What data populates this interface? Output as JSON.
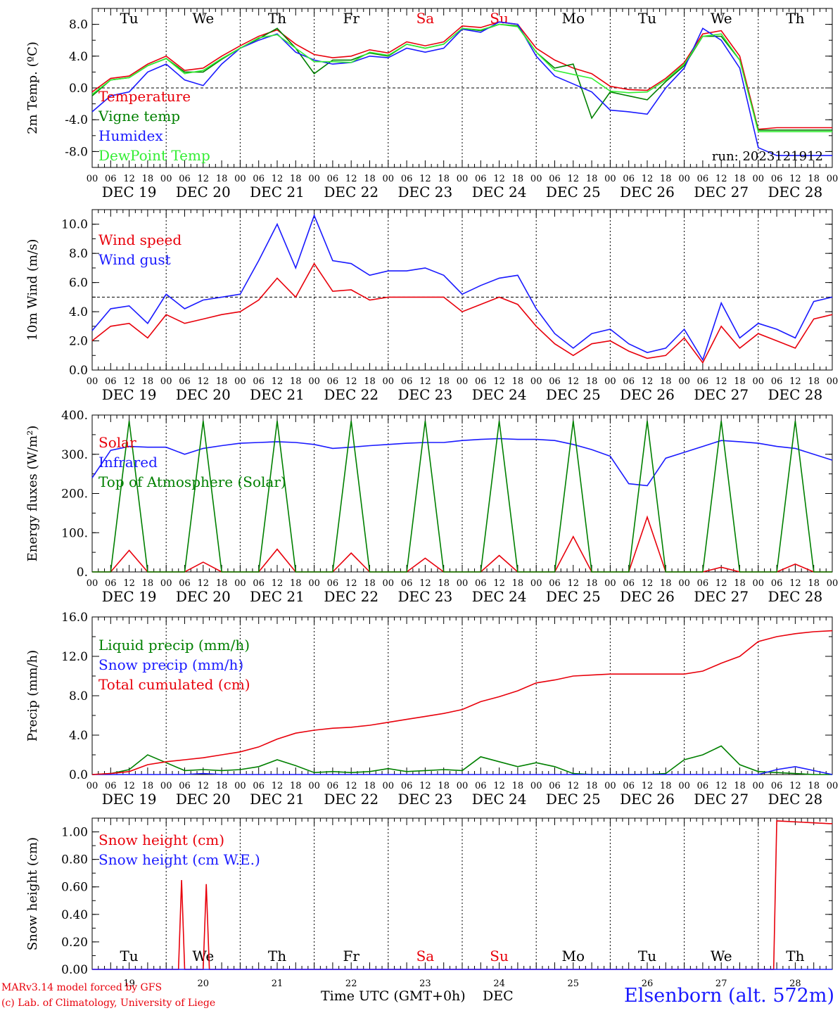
{
  "colors": {
    "red": "#e8000b",
    "green": "#008000",
    "blue": "#1a1aff",
    "lime": "#33ee33",
    "black": "#000000"
  },
  "x_axis": {
    "hour_ticks": [
      "00",
      "06",
      "12",
      "18"
    ],
    "final_tick": "00",
    "dates": [
      "DEC 19",
      "DEC 20",
      "DEC 21",
      "DEC 22",
      "DEC 23",
      "DEC 24",
      "DEC 25",
      "DEC 26",
      "DEC 27",
      "DEC 28"
    ],
    "day_numbers": [
      "19",
      "20",
      "21",
      "22",
      "23",
      "24",
      "25",
      "26",
      "27",
      "28"
    ],
    "weekdays": [
      {
        "label": "Tu",
        "color": "#000000"
      },
      {
        "label": "We",
        "color": "#000000"
      },
      {
        "label": "Th",
        "color": "#000000"
      },
      {
        "label": "Fr",
        "color": "#000000"
      },
      {
        "label": "Sa",
        "color": "#e8000b"
      },
      {
        "label": "Su",
        "color": "#e8000b"
      },
      {
        "label": "Mo",
        "color": "#000000"
      },
      {
        "label": "Tu",
        "color": "#000000"
      },
      {
        "label": "We",
        "color": "#000000"
      },
      {
        "label": "Th",
        "color": "#000000"
      }
    ]
  },
  "footer": {
    "model": "MARv3.14 model forced by GFS",
    "credit": "(c) Lab. of Climatology, University of Liege",
    "axis_title": "Time UTC (GMT+0h)",
    "month": "DEC",
    "station": "Elsenborn (alt. 572m)"
  },
  "chart_data": [
    {
      "type": "line",
      "ylabel": "2m Temp. (ºC)",
      "ylim": [
        -10,
        10
      ],
      "yticks": [
        8.0,
        4.0,
        0.0,
        -4.0,
        -8.0
      ],
      "ytick_labels": [
        "8.0",
        "4.0",
        "0.0",
        "-4.0",
        "-8.0"
      ],
      "ref_line": 0,
      "annotation": "run: 2023121912",
      "x_unit": "hours since DEC 19 00 UTC",
      "x": [
        0,
        6,
        12,
        18,
        24,
        30,
        36,
        42,
        48,
        54,
        60,
        66,
        72,
        78,
        84,
        90,
        96,
        102,
        108,
        114,
        120,
        126,
        132,
        138,
        144,
        150,
        156,
        162,
        168,
        174,
        180,
        186,
        192,
        198,
        204,
        210,
        216,
        222,
        228,
        234,
        240
      ],
      "series": [
        {
          "name": "Temperature",
          "color": "#e8000b",
          "values": [
            -0.5,
            1.2,
            1.5,
            3.0,
            4.0,
            2.2,
            2.5,
            4.0,
            5.3,
            6.5,
            7.3,
            5.5,
            4.2,
            3.8,
            4.0,
            4.8,
            4.4,
            5.8,
            5.3,
            5.8,
            7.8,
            7.6,
            8.3,
            8.0,
            5.0,
            3.5,
            2.5,
            1.8,
            0.2,
            -0.2,
            -0.3,
            1.2,
            3.2,
            6.8,
            7.2,
            4.0,
            -5.2,
            -5.0,
            -5.0,
            -5.0,
            -5.0
          ]
        },
        {
          "name": "Vigne temp",
          "color": "#008000",
          "values": [
            -1.0,
            1.0,
            1.3,
            2.8,
            3.7,
            2.0,
            2.0,
            3.6,
            5.0,
            6.2,
            7.5,
            5.0,
            1.8,
            3.5,
            3.5,
            4.4,
            4.0,
            5.5,
            5.0,
            5.5,
            7.5,
            7.2,
            8.0,
            7.8,
            4.5,
            2.5,
            3.0,
            -3.8,
            -0.5,
            -1.0,
            -1.5,
            0.8,
            2.8,
            6.5,
            6.5,
            3.5,
            -5.3,
            -5.3,
            -5.3,
            -5.3,
            -5.3
          ]
        },
        {
          "name": "Humidex",
          "color": "#1a1aff",
          "values": [
            -3.0,
            -1.0,
            -0.5,
            2.0,
            3.0,
            1.0,
            0.3,
            3.0,
            5.0,
            6.0,
            6.8,
            4.5,
            3.5,
            3.0,
            3.2,
            4.0,
            3.8,
            5.0,
            4.5,
            5.0,
            7.4,
            7.0,
            8.3,
            8.0,
            4.0,
            1.5,
            0.5,
            -0.5,
            -2.8,
            -3.0,
            -3.3,
            0.0,
            2.5,
            7.5,
            6.0,
            2.5,
            -7.5,
            -8.5,
            -8.5,
            -8.5,
            -8.5
          ]
        },
        {
          "name": "DewPoint Temp",
          "color": "#33ee33",
          "values": [
            -0.8,
            1.0,
            1.3,
            2.8,
            3.7,
            1.8,
            2.2,
            3.7,
            5.0,
            6.3,
            6.7,
            5.0,
            3.3,
            3.3,
            3.2,
            4.5,
            4.1,
            5.5,
            5.0,
            5.5,
            7.5,
            7.3,
            8.0,
            7.7,
            4.5,
            2.2,
            1.7,
            1.2,
            -0.4,
            -0.6,
            -0.5,
            1.0,
            3.0,
            6.5,
            6.8,
            3.5,
            -5.5,
            -5.5,
            -5.5,
            -5.5,
            -5.5
          ]
        }
      ]
    },
    {
      "type": "line",
      "ylabel": "10m Wind (m/s)",
      "ylim": [
        0,
        11
      ],
      "yticks": [
        0,
        2,
        4,
        6,
        8,
        10
      ],
      "ytick_labels": [
        "0.0",
        "2.0",
        "4.0",
        "6.0",
        "8.0",
        "10.0"
      ],
      "ref_line": 5,
      "x_unit": "hours since DEC 19 00 UTC",
      "x": [
        0,
        6,
        12,
        18,
        24,
        30,
        36,
        42,
        48,
        54,
        60,
        66,
        72,
        78,
        84,
        90,
        96,
        102,
        108,
        114,
        120,
        126,
        132,
        138,
        144,
        150,
        156,
        162,
        168,
        174,
        180,
        186,
        192,
        198,
        204,
        210,
        216,
        222,
        228,
        234,
        240
      ],
      "series": [
        {
          "name": "Wind speed",
          "color": "#e8000b",
          "values": [
            2.0,
            3.0,
            3.2,
            2.2,
            3.8,
            3.2,
            3.5,
            3.8,
            4.0,
            4.8,
            6.3,
            5.0,
            7.3,
            5.4,
            5.5,
            4.8,
            5.0,
            5.0,
            5.0,
            5.0,
            4.0,
            4.5,
            5.0,
            4.5,
            3.0,
            1.8,
            1.0,
            1.8,
            2.0,
            1.3,
            0.8,
            1.0,
            2.2,
            0.5,
            3.0,
            1.5,
            2.5,
            2.0,
            1.5,
            3.5,
            3.8
          ]
        },
        {
          "name": "Wind gust",
          "color": "#1a1aff",
          "values": [
            2.7,
            4.2,
            4.4,
            3.2,
            5.2,
            4.2,
            4.8,
            5.0,
            5.2,
            7.5,
            10.0,
            7.0,
            10.6,
            7.5,
            7.3,
            6.5,
            6.8,
            6.8,
            7.0,
            6.5,
            5.2,
            5.8,
            6.3,
            6.5,
            4.2,
            2.5,
            1.5,
            2.5,
            2.8,
            1.8,
            1.2,
            1.5,
            2.8,
            0.7,
            4.6,
            2.2,
            3.2,
            2.8,
            2.2,
            4.7,
            5.0
          ]
        }
      ]
    },
    {
      "type": "line",
      "ylabel": "Energy fluxes (W/m²)",
      "ylim": [
        0,
        400
      ],
      "yticks": [
        0,
        100,
        200,
        300,
        400
      ],
      "ytick_labels": [
        "0.",
        "100.",
        "200.",
        "300.",
        "400."
      ],
      "x_unit": "hours since DEC 19 00 UTC",
      "x": [
        0,
        6,
        12,
        18,
        24,
        30,
        36,
        42,
        48,
        54,
        60,
        66,
        72,
        78,
        84,
        90,
        96,
        102,
        108,
        114,
        120,
        126,
        132,
        138,
        144,
        150,
        156,
        162,
        168,
        174,
        180,
        186,
        192,
        198,
        204,
        210,
        216,
        222,
        228,
        234,
        240
      ],
      "series": [
        {
          "name": "Solar",
          "color": "#e8000b",
          "values": [
            0,
            0,
            55,
            0,
            0,
            0,
            25,
            0,
            0,
            0,
            58,
            0,
            0,
            0,
            48,
            0,
            0,
            0,
            35,
            0,
            0,
            0,
            42,
            0,
            0,
            0,
            90,
            0,
            0,
            0,
            140,
            0,
            0,
            0,
            12,
            0,
            0,
            0,
            20,
            0,
            0
          ]
        },
        {
          "name": "Infrared",
          "color": "#1a1aff",
          "values": [
            240,
            310,
            320,
            318,
            318,
            300,
            315,
            322,
            328,
            330,
            332,
            330,
            325,
            315,
            318,
            322,
            325,
            328,
            330,
            330,
            335,
            338,
            340,
            338,
            338,
            335,
            325,
            312,
            295,
            225,
            220,
            290,
            305,
            320,
            335,
            332,
            328,
            320,
            315,
            300,
            285
          ]
        },
        {
          "name": "Top of Atmosphere (Solar)",
          "color": "#008000",
          "values": [
            0,
            0,
            385,
            0,
            0,
            0,
            385,
            0,
            0,
            0,
            385,
            0,
            0,
            0,
            385,
            0,
            0,
            0,
            385,
            0,
            0,
            0,
            385,
            0,
            0,
            0,
            385,
            0,
            0,
            0,
            385,
            0,
            0,
            0,
            385,
            0,
            0,
            0,
            385,
            0,
            0
          ]
        }
      ]
    },
    {
      "type": "line",
      "ylabel": "Precip (mm/h)",
      "ylim": [
        0,
        16
      ],
      "yticks": [
        0,
        4,
        8,
        12,
        16
      ],
      "ytick_labels": [
        "0.0",
        "4.0",
        "8.0",
        "12.0",
        "16.0"
      ],
      "x_unit": "hours since DEC 19 00 UTC",
      "x": [
        0,
        6,
        12,
        18,
        24,
        30,
        36,
        42,
        48,
        54,
        60,
        66,
        72,
        78,
        84,
        90,
        96,
        102,
        108,
        114,
        120,
        126,
        132,
        138,
        144,
        150,
        156,
        162,
        168,
        174,
        180,
        186,
        192,
        198,
        204,
        210,
        216,
        222,
        228,
        234,
        240
      ],
      "series": [
        {
          "name": "Liquid precip (mm/h)",
          "color": "#008000",
          "values": [
            0,
            0.1,
            0.5,
            2.0,
            1.2,
            0.4,
            0.5,
            0.4,
            0.5,
            0.8,
            1.5,
            0.9,
            0.2,
            0.3,
            0.2,
            0.3,
            0.6,
            0.3,
            0.4,
            0.5,
            0.4,
            1.8,
            1.3,
            0.8,
            1.2,
            0.8,
            0.1,
            0.0,
            0.0,
            0.0,
            0.0,
            0.1,
            1.5,
            2.0,
            2.9,
            1.0,
            0.3,
            0.2,
            0.1,
            0.0,
            0.0
          ]
        },
        {
          "name": "Snow precip (mm/h)",
          "color": "#1a1aff",
          "values": [
            0,
            0,
            0,
            0,
            0,
            0,
            0.1,
            0,
            0,
            0,
            0,
            0,
            0,
            0,
            0,
            0,
            0,
            0,
            0,
            0,
            0,
            0,
            0,
            0,
            0,
            0,
            0,
            0,
            0,
            0,
            0,
            0,
            0,
            0,
            0,
            0,
            0,
            0.5,
            0.8,
            0.4,
            0
          ]
        },
        {
          "name": "Total cumulated (cm)",
          "color": "#e8000b",
          "values": [
            0,
            0.1,
            0.3,
            1.0,
            1.3,
            1.5,
            1.7,
            2.0,
            2.3,
            2.8,
            3.6,
            4.2,
            4.5,
            4.7,
            4.8,
            5.0,
            5.3,
            5.6,
            5.9,
            6.2,
            6.6,
            7.4,
            7.9,
            8.5,
            9.3,
            9.6,
            10.0,
            10.1,
            10.2,
            10.2,
            10.2,
            10.2,
            10.2,
            10.5,
            11.3,
            12.0,
            13.5,
            14.0,
            14.3,
            14.5,
            14.6
          ]
        }
      ]
    },
    {
      "type": "line",
      "ylabel": "Snow height (cm)",
      "ylim": [
        0,
        1.1
      ],
      "yticks": [
        0,
        0.2,
        0.4,
        0.6,
        0.8,
        1.0
      ],
      "ytick_labels": [
        "0.00",
        "0.20",
        "0.40",
        "0.60",
        "0.80",
        "1.00"
      ],
      "x_unit": "hours since DEC 19 00 UTC",
      "series": [
        {
          "name": "Snow height (cm)",
          "color": "#e8000b",
          "x": [
            0,
            28,
            29,
            30,
            36,
            37,
            38,
            221,
            222,
            239,
            240
          ],
          "values": [
            0,
            0,
            0.65,
            0,
            0,
            0.62,
            0,
            0,
            1.08,
            1.06,
            1.06
          ]
        },
        {
          "name": "Snow height (cm W.E.)",
          "color": "#1a1aff",
          "x": [
            0,
            240
          ],
          "values": [
            0,
            0
          ]
        }
      ]
    }
  ]
}
